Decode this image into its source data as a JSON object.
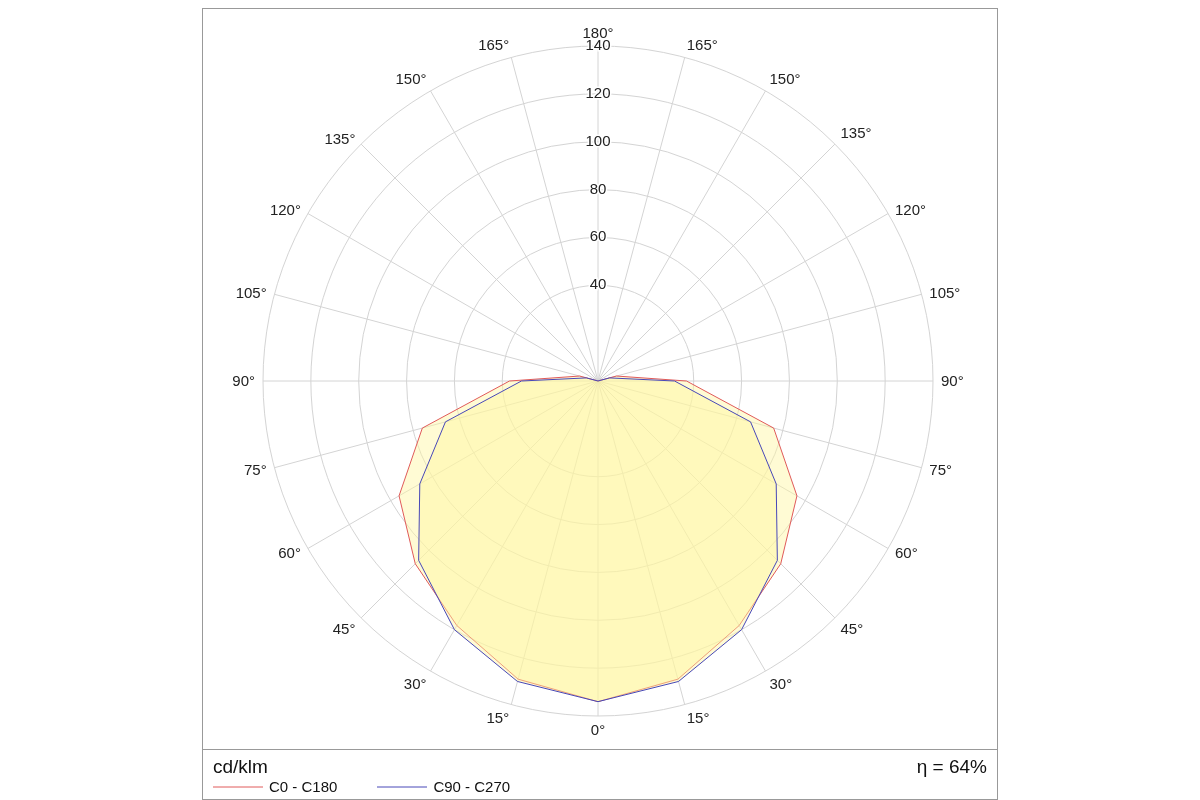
{
  "chart_data": {
    "type": "radar",
    "ylabel": "cd/klm",
    "annotations": [
      "η = 64%"
    ],
    "categories": [
      "180°",
      "165°",
      "150°",
      "135°",
      "120°",
      "105°",
      "90°",
      "75°",
      "60°",
      "45°",
      "30°",
      "15°",
      "0°",
      "15°",
      "30°",
      "45°",
      "60°",
      "75°",
      "90°",
      "105°",
      "120°",
      "135°",
      "150°",
      "165°"
    ],
    "series": [
      {
        "name": "C0 - C180",
        "color": "#e05a5a",
        "values": [
          0,
          0,
          0,
          0,
          0,
          8,
          37,
          76,
          96,
          108,
          118,
          129,
          134,
          129,
          118,
          108,
          96,
          76,
          37,
          8,
          0,
          0,
          0,
          0
        ]
      },
      {
        "name": "C90 - C270",
        "color": "#4848b8",
        "values": [
          0,
          0,
          0,
          0,
          0,
          5,
          32,
          66,
          86,
          106,
          120,
          130,
          134,
          130,
          120,
          106,
          86,
          66,
          32,
          5,
          0,
          0,
          0,
          0
        ]
      }
    ],
    "ylim": [
      0,
      140
    ],
    "yticks": [
      40,
      60,
      80,
      100,
      120,
      140
    ],
    "grid": true,
    "legend": "bottom left"
  }
}
